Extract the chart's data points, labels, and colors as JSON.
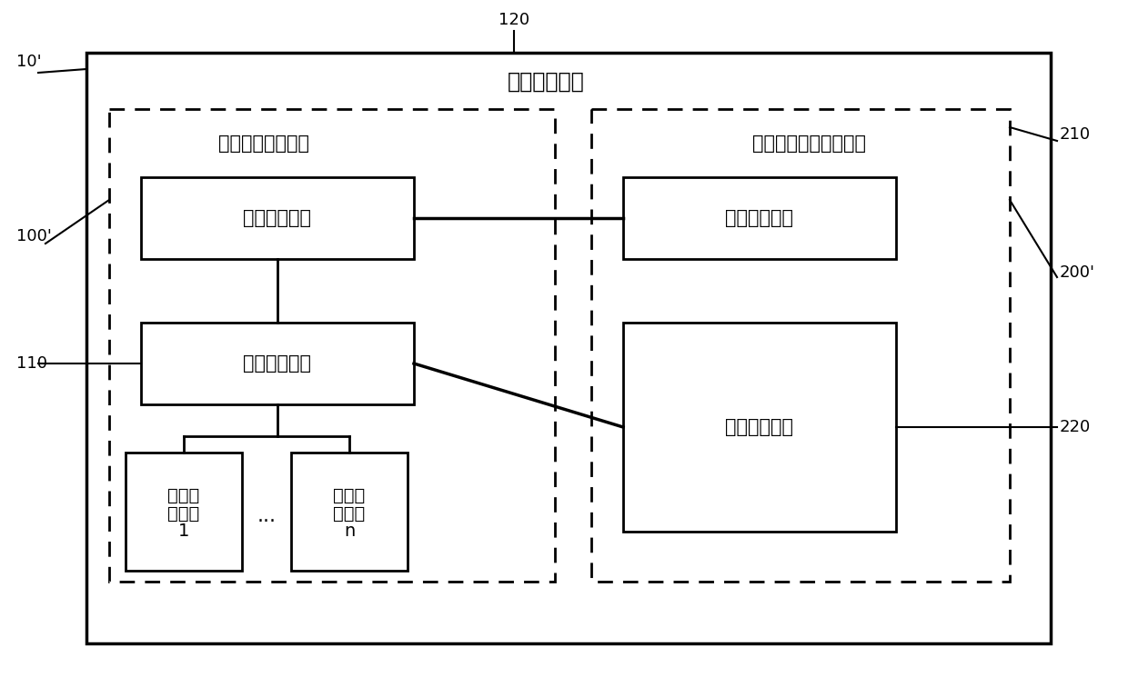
{
  "title": "车载信息终端",
  "label_10": "10'",
  "label_100": "100'",
  "label_110": "110",
  "label_120": "120",
  "label_200": "200'",
  "label_210": "210",
  "label_220": "220",
  "rtos_label": "实时操作系统模块",
  "gui_label": "图形界面操作系统模块",
  "state_monitor": "状态监控模块",
  "app_control": "应用控制模块",
  "hw_module1_line1": "硬件功",
  "hw_module1_line2": "能模块",
  "hw_module1_line3": "1",
  "hw_modulen_line1": "硬件功",
  "hw_modulen_line2": "能模块",
  "hw_modulen_line3": "n",
  "dots": "...",
  "start_monitor": "启动监控模块",
  "app_process": "应用处理模块",
  "bg_color": "#ffffff",
  "font_size_title": 17,
  "font_size_label": 15,
  "font_size_ref": 13,
  "font_size_hw": 14
}
